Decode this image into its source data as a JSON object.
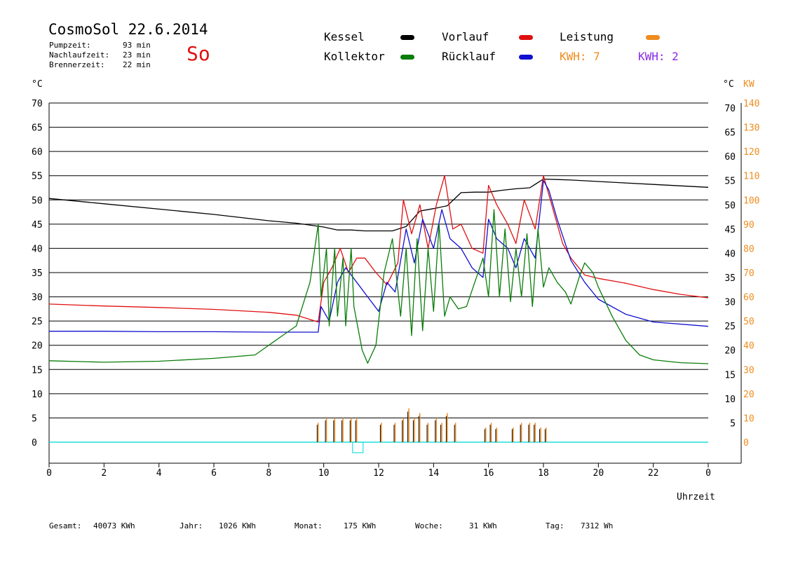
{
  "header": {
    "title": "CosmoSol 22.6.2014",
    "weekday": "So",
    "stats": [
      {
        "label": "Pumpzeit:",
        "value": "93 min"
      },
      {
        "label": "Nachlaufzeit:",
        "value": "23 min"
      },
      {
        "label": "Brennerzeit:",
        "value": "22 min"
      }
    ]
  },
  "legend": {
    "kessel": "Kessel",
    "kollektor": "Kollektor",
    "vorlauf": "Vorlauf",
    "ruecklauf": "Rücklauf",
    "leistung": "Leistung",
    "kwh_orange": "KWH: 7",
    "kwh_purple": "KWH: 2"
  },
  "axes": {
    "left_unit": "°C",
    "right_unit": "°C",
    "right_unit2": "KW",
    "xlabel": "Uhrzeit"
  },
  "footer": {
    "gesamt_label": "Gesamt:",
    "gesamt_value": "40073 KWh",
    "jahr_label": "Jahr:",
    "jahr_value": "1026 KWh",
    "monat_label": "Monat:",
    "monat_value": "175 KWh",
    "woche_label": "Woche:",
    "woche_value": "31 KWh",
    "tag_label": "Tag:",
    "tag_value": "7312 Wh"
  },
  "chart_data": {
    "type": "line",
    "title": "CosmoSol 22.6.2014",
    "xlabel": "Uhrzeit",
    "ylabel": "°C",
    "xlim": [
      0,
      24
    ],
    "ylim": [
      0,
      70
    ],
    "y2lim": [
      0,
      140
    ],
    "grid": true,
    "x_ticks": [
      "0",
      "2",
      "4",
      "6",
      "8",
      "10",
      "12",
      "14",
      "16",
      "18",
      "20",
      "22",
      "0"
    ],
    "y_ticks": [
      "0",
      "5",
      "10",
      "15",
      "20",
      "25",
      "30",
      "35",
      "40",
      "45",
      "50",
      "55",
      "60",
      "65",
      "70"
    ],
    "y_ticks_right": [
      "5",
      "10",
      "15",
      "20",
      "25",
      "30",
      "35",
      "40",
      "45",
      "50",
      "55",
      "60",
      "65",
      "70"
    ],
    "y2_ticks": [
      "0",
      "10",
      "20",
      "30",
      "40",
      "50",
      "60",
      "70",
      "80",
      "90",
      "100",
      "110",
      "120",
      "130",
      "140"
    ],
    "colors": {
      "kessel": "#000000",
      "kollektor": "#0a7d0a",
      "vorlauf": "#e01010",
      "ruecklauf": "#1010d0",
      "leistung": "#f08c1e",
      "kwh2": "#8a2be2",
      "baseline": "#22dddd"
    },
    "series": [
      {
        "name": "Kessel",
        "color": "#000000",
        "x": [
          0,
          2,
          4,
          6,
          8,
          9,
          10,
          10.5,
          11,
          11.5,
          12,
          12.5,
          13,
          13.5,
          14,
          14.5,
          15,
          15.5,
          16,
          16.5,
          17,
          17.5,
          18,
          18.5,
          19,
          20,
          21,
          22,
          24
        ],
        "y": [
          50.3,
          49.2,
          48.1,
          47,
          45.7,
          45.2,
          44.4,
          43.8,
          43.8,
          43.6,
          43.6,
          43.6,
          44.5,
          47.7,
          48.2,
          48.8,
          51.5,
          51.6,
          51.6,
          52,
          52.3,
          52.5,
          54.3,
          54.2,
          54.1,
          53.8,
          53.5,
          53.2,
          52.6
        ]
      },
      {
        "name": "Vorlauf",
        "color": "#e01010",
        "x": [
          0,
          2,
          4,
          6,
          8,
          9,
          9.8,
          10,
          10.3,
          10.6,
          10.9,
          11.2,
          11.5,
          11.9,
          12.3,
          12.7,
          12.9,
          13.2,
          13.5,
          13.8,
          14.1,
          14.4,
          14.7,
          15,
          15.4,
          15.8,
          16,
          16.3,
          16.7,
          17,
          17.3,
          17.7,
          18,
          18.3,
          18.7,
          19,
          19.5,
          20,
          21,
          22,
          23,
          24
        ],
        "y": [
          28.5,
          28.1,
          27.8,
          27.4,
          26.8,
          26.2,
          24.8,
          33,
          36,
          40,
          35,
          38,
          38,
          35,
          32.5,
          37,
          50,
          43,
          49,
          40,
          49,
          55,
          44,
          45,
          40,
          39,
          53,
          49,
          45,
          41,
          50,
          44,
          55,
          49,
          41,
          38,
          34.5,
          33.8,
          32.8,
          31.5,
          30.5,
          29.8
        ]
      },
      {
        "name": "Rücklauf",
        "color": "#1010d0",
        "x": [
          0,
          2,
          4,
          6,
          8,
          9.8,
          9.9,
          10.2,
          10.5,
          10.8,
          11.2,
          11.6,
          12,
          12.3,
          12.6,
          13,
          13.3,
          13.6,
          14,
          14.3,
          14.6,
          15,
          15.4,
          15.8,
          16,
          16.3,
          16.7,
          17,
          17.3,
          17.7,
          18,
          18.2,
          18.5,
          19,
          19.5,
          20,
          21,
          22,
          24
        ],
        "y": [
          22.9,
          22.9,
          22.8,
          22.8,
          22.7,
          22.7,
          28,
          25,
          33,
          36,
          33,
          30,
          27,
          33,
          31,
          44,
          37,
          46,
          40,
          48,
          42,
          40,
          36,
          34,
          46,
          42,
          40,
          36,
          42,
          38,
          54,
          52,
          46,
          37.5,
          33,
          29.5,
          26.4,
          24.8,
          23.9
        ]
      },
      {
        "name": "Kollektor",
        "color": "#0a7d0a",
        "x": [
          0,
          2,
          4,
          6,
          7.5,
          8,
          8.5,
          9,
          9.5,
          9.8,
          9.9,
          10.1,
          10.2,
          10.4,
          10.5,
          10.7,
          10.8,
          11,
          11.1,
          11.4,
          11.6,
          11.9,
          12,
          12.2,
          12.5,
          12.8,
          13,
          13.2,
          13.4,
          13.6,
          13.8,
          14,
          14.2,
          14.4,
          14.6,
          14.9,
          15.2,
          15.5,
          15.8,
          16,
          16.2,
          16.4,
          16.6,
          16.8,
          17,
          17.2,
          17.4,
          17.6,
          17.8,
          18,
          18.2,
          18.5,
          18.8,
          19,
          19.3,
          19.5,
          19.8,
          20,
          20.5,
          21,
          21.5,
          22,
          23,
          24
        ],
        "y": [
          16.8,
          16.5,
          16.7,
          17.3,
          18,
          20,
          22,
          24,
          33,
          45,
          30,
          40,
          24,
          40,
          26,
          38,
          24,
          40,
          28,
          19,
          16.3,
          20,
          25,
          35,
          42,
          26,
          40,
          22,
          42,
          23,
          40,
          27,
          45,
          26,
          30,
          27.5,
          28,
          33,
          38,
          30,
          48,
          30,
          44,
          29,
          40,
          30,
          43,
          28,
          44,
          32,
          36,
          33,
          31,
          28.5,
          34,
          37,
          35,
          32,
          26,
          21,
          18,
          17,
          16.4,
          16.2
        ]
      },
      {
        "name": "Leistung",
        "color": "#f08c1e",
        "axis": "right",
        "x": [
          9.8,
          10.1,
          10.4,
          10.7,
          11,
          11.2,
          12.1,
          12.6,
          12.9,
          13.1,
          13.3,
          13.5,
          13.8,
          14.1,
          14.3,
          14.5,
          14.8,
          15.9,
          16.1,
          16.3,
          16.9,
          17.2,
          17.5,
          17.7,
          17.9,
          18.1
        ],
        "y": [
          8,
          10,
          10,
          10,
          10,
          10,
          8,
          8,
          10,
          14,
          10,
          12,
          8,
          10,
          8,
          12,
          8,
          6,
          8,
          6,
          6,
          8,
          8,
          8,
          6,
          6
        ]
      }
    ]
  }
}
